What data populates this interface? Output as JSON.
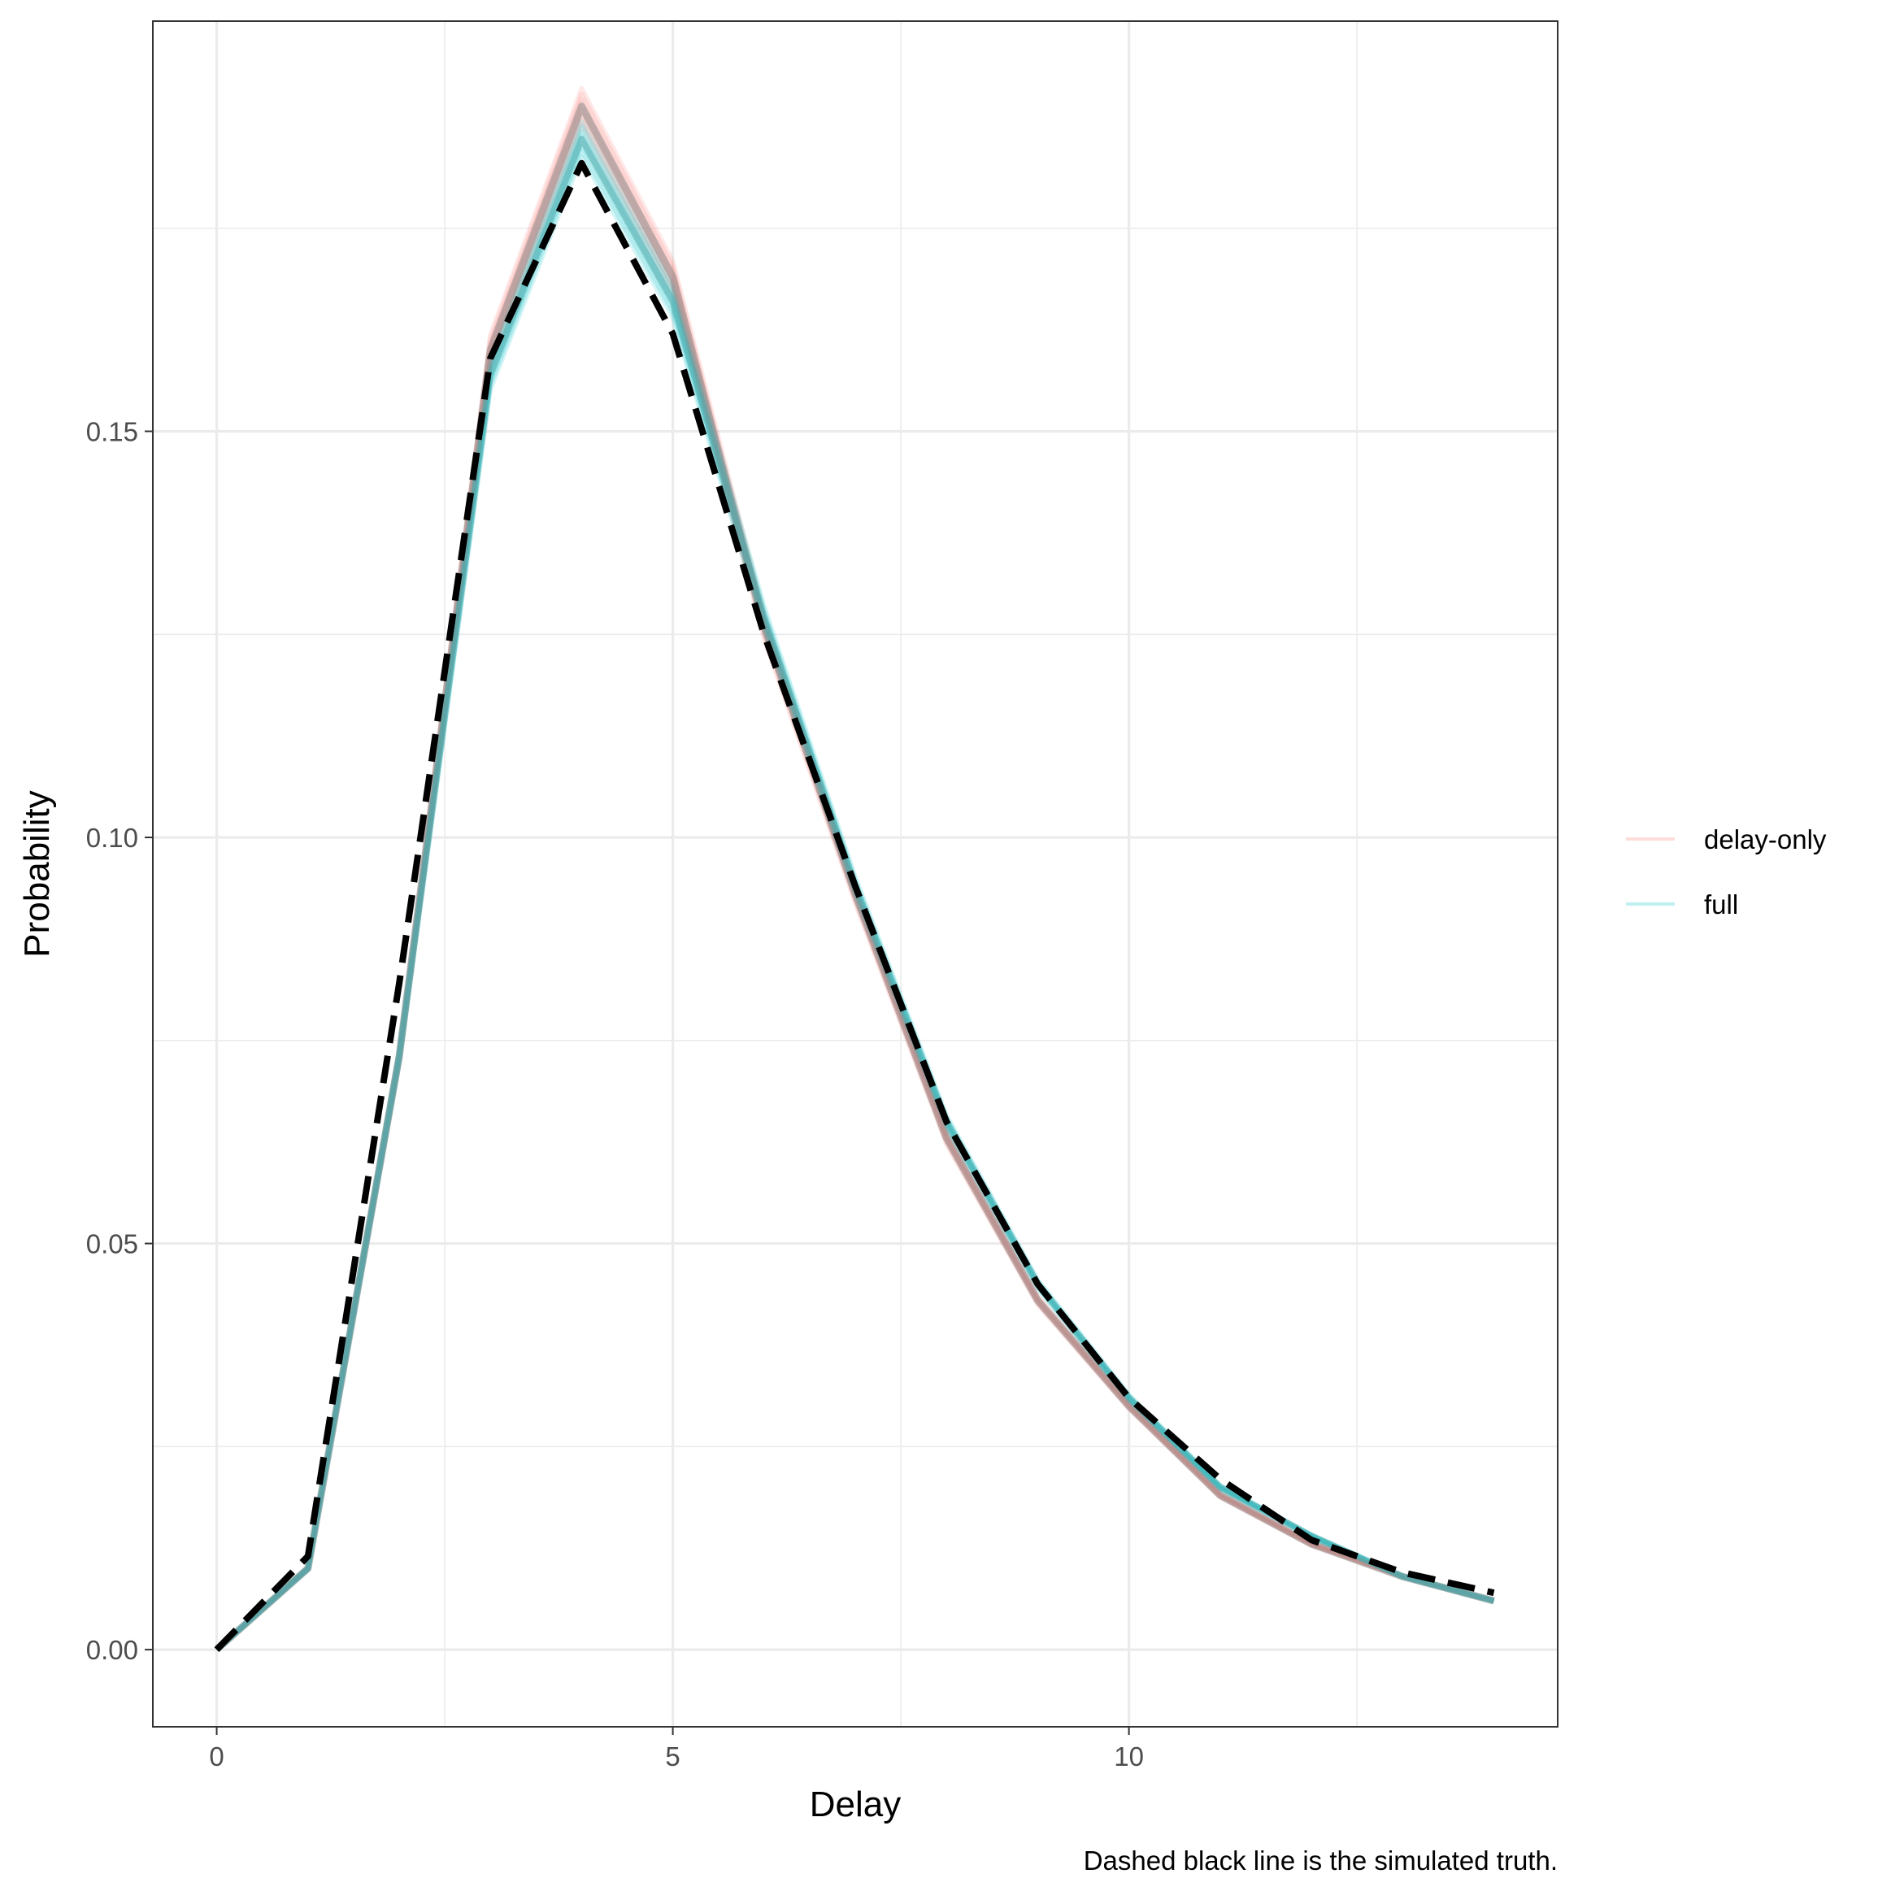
{
  "chart_data": {
    "type": "line",
    "title": "",
    "xlabel": "Delay",
    "ylabel": "Probability",
    "caption": "Dashed black line is the simulated truth.",
    "xlim": [
      -0.7,
      14.7
    ],
    "ylim": [
      -0.0095,
      0.2005
    ],
    "x_ticks": [
      0,
      5,
      10
    ],
    "x_tick_labels": [
      "0",
      "5",
      "10"
    ],
    "y_ticks": [
      0.0,
      0.05,
      0.1,
      0.15
    ],
    "y_tick_labels": [
      "0.00",
      "0.05",
      "0.10",
      "0.15"
    ],
    "grid": true,
    "legend_position": "right",
    "legend": [
      {
        "name": "delay-only",
        "color": "#F8766D"
      },
      {
        "name": "full",
        "color": "#00BFC4"
      }
    ],
    "x": [
      0,
      1,
      2,
      3,
      4,
      5,
      6,
      7,
      8,
      9,
      10,
      11,
      12,
      13,
      14
    ],
    "series": [
      {
        "name": "delay-only",
        "color": "#F8766D",
        "values": [
          0.0,
          0.01,
          0.073,
          0.16,
          0.19,
          0.169,
          0.126,
          0.093,
          0.063,
          0.043,
          0.03,
          0.019,
          0.013,
          0.009,
          0.006
        ]
      },
      {
        "name": "full",
        "color": "#00BFC4",
        "values": [
          0.0,
          0.01,
          0.073,
          0.157,
          0.186,
          0.166,
          0.127,
          0.094,
          0.065,
          0.045,
          0.031,
          0.02,
          0.014,
          0.009,
          0.006
        ]
      },
      {
        "name": "simulated truth",
        "color": "#000000",
        "values": [
          0.0,
          0.0115,
          0.082,
          0.159,
          0.183,
          0.162,
          0.125,
          0.094,
          0.065,
          0.045,
          0.031,
          0.021,
          0.0135,
          0.0095,
          0.007
        ]
      }
    ]
  }
}
